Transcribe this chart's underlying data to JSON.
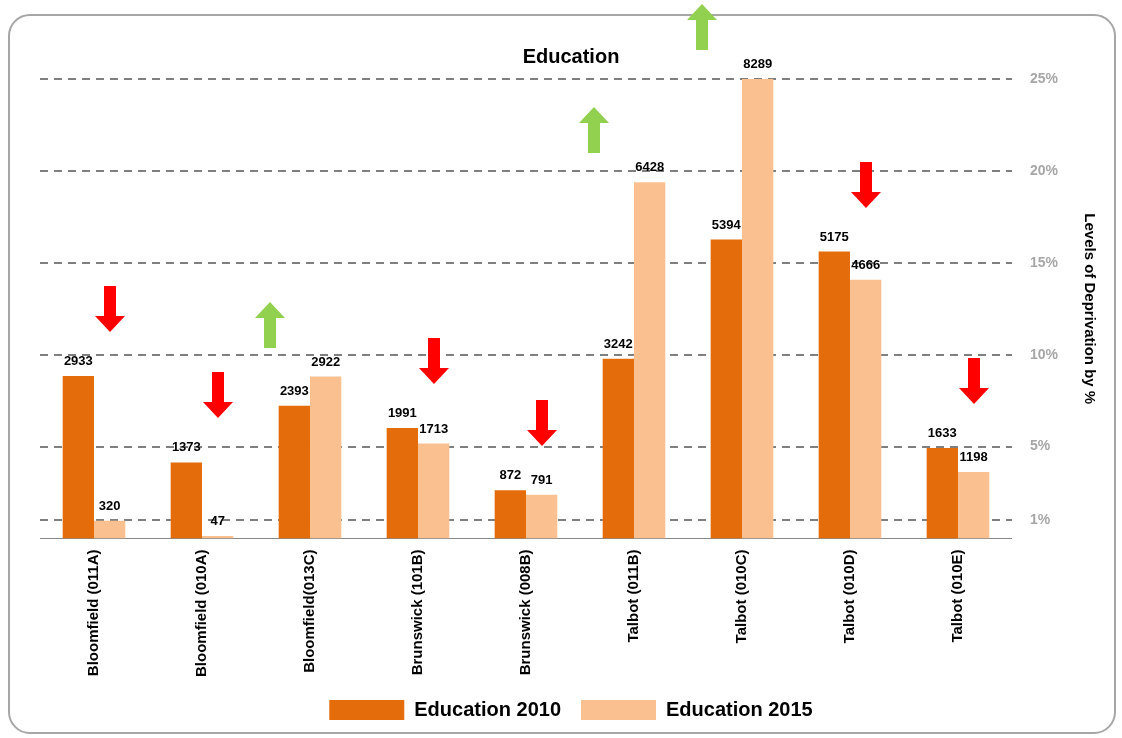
{
  "chart_data": {
    "type": "bar",
    "title": "Education",
    "categories": [
      "Bloomfield (011A)",
      "Bloomfield (010A)",
      "Bloomfield(013C)",
      "Brunswick (101B)",
      "Brunswick (008B)",
      "Talbot (011B)",
      "Talbot (010C)",
      "Talbot (010D)",
      "Talbot (010E)"
    ],
    "series": [
      {
        "name": "Education 2010",
        "color": "#e46c0a",
        "values": [
          2933,
          1373,
          2393,
          1991,
          872,
          3242,
          5394,
          5175,
          1633
        ]
      },
      {
        "name": "Education 2015",
        "color": "#fac090",
        "values": [
          320,
          47,
          2922,
          1713,
          791,
          6428,
          8289,
          4666,
          1198
        ]
      }
    ],
    "y2label": "Levels of Deprivation by %",
    "y2lim": [
      0,
      25
    ],
    "y2ticks": [
      {
        "value": 1,
        "label": "1%"
      },
      {
        "value": 5,
        "label": "5%"
      },
      {
        "value": 10,
        "label": "10%"
      },
      {
        "value": 15,
        "label": "15%"
      },
      {
        "value": 20,
        "label": "20%"
      },
      {
        "value": 25,
        "label": "25%"
      }
    ],
    "grid": "y",
    "data_labels": true,
    "legend": "bottom"
  }
}
